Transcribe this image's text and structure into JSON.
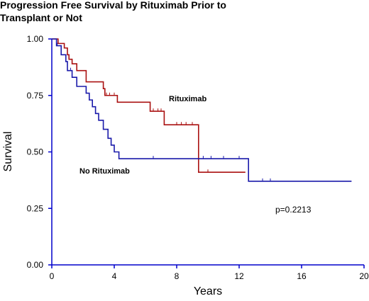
{
  "chart_data": {
    "type": "line",
    "step": true,
    "title": "Progression Free Survival by Rituximab Prior to Transplant  or Not",
    "title_lines": [
      "Progression Free Survival by Rituximab Prior to",
      "Transplant  or Not"
    ],
    "xlabel": "Years",
    "ylabel": "Survival",
    "xlim": [
      0,
      20
    ],
    "ylim": [
      0,
      1
    ],
    "x_ticks": [
      0,
      4,
      8,
      12,
      16,
      20
    ],
    "y_ticks": [
      0.0,
      0.25,
      0.5,
      0.75,
      1.0
    ],
    "y_tick_labels": [
      "0.00",
      "0.25",
      "0.50",
      "0.75",
      "1.00"
    ],
    "grid": false,
    "annotation": "p=0.2213",
    "colors": {
      "axes": "#0000cc",
      "rituximab": "#aa1111",
      "no_rituximab": "#1a1aaa"
    },
    "series": [
      {
        "name": "Rituximab",
        "color": "#aa1111",
        "x": [
          0,
          0.4,
          0.8,
          1.0,
          1.1,
          1.3,
          1.6,
          2.2,
          3.3,
          3.4,
          4.2,
          6.3,
          7.2,
          9.4,
          12.4
        ],
        "y": [
          1.0,
          0.98,
          0.96,
          0.93,
          0.91,
          0.89,
          0.86,
          0.81,
          0.78,
          0.75,
          0.72,
          0.68,
          0.62,
          0.41,
          0.41
        ],
        "censored": [
          [
            1.3,
            0.89
          ],
          [
            3.3,
            0.78
          ],
          [
            3.5,
            0.75
          ],
          [
            3.7,
            0.75
          ],
          [
            4.0,
            0.75
          ],
          [
            6.5,
            0.68
          ],
          [
            6.8,
            0.68
          ],
          [
            7.0,
            0.68
          ],
          [
            8.0,
            0.62
          ],
          [
            8.3,
            0.62
          ],
          [
            8.6,
            0.62
          ],
          [
            9.0,
            0.62
          ],
          [
            10.0,
            0.41
          ]
        ]
      },
      {
        "name": "No Rituximab",
        "color": "#1a1aaa",
        "x": [
          0,
          0.3,
          0.6,
          0.9,
          1.0,
          1.3,
          1.6,
          2.2,
          2.4,
          2.6,
          2.8,
          3.0,
          3.3,
          3.6,
          3.8,
          4.0,
          4.3,
          12.6,
          19.2
        ],
        "y": [
          1.0,
          0.97,
          0.93,
          0.9,
          0.86,
          0.83,
          0.79,
          0.76,
          0.73,
          0.7,
          0.67,
          0.64,
          0.6,
          0.56,
          0.53,
          0.5,
          0.47,
          0.37,
          0.37
        ],
        "censored": [
          [
            0.35,
            0.97
          ],
          [
            1.2,
            0.86
          ],
          [
            6.5,
            0.47
          ],
          [
            12.0,
            0.47
          ],
          [
            9.7,
            0.47
          ],
          [
            10.2,
            0.47
          ],
          [
            11.0,
            0.47
          ],
          [
            13.5,
            0.37
          ],
          [
            14.0,
            0.37
          ]
        ]
      }
    ]
  }
}
